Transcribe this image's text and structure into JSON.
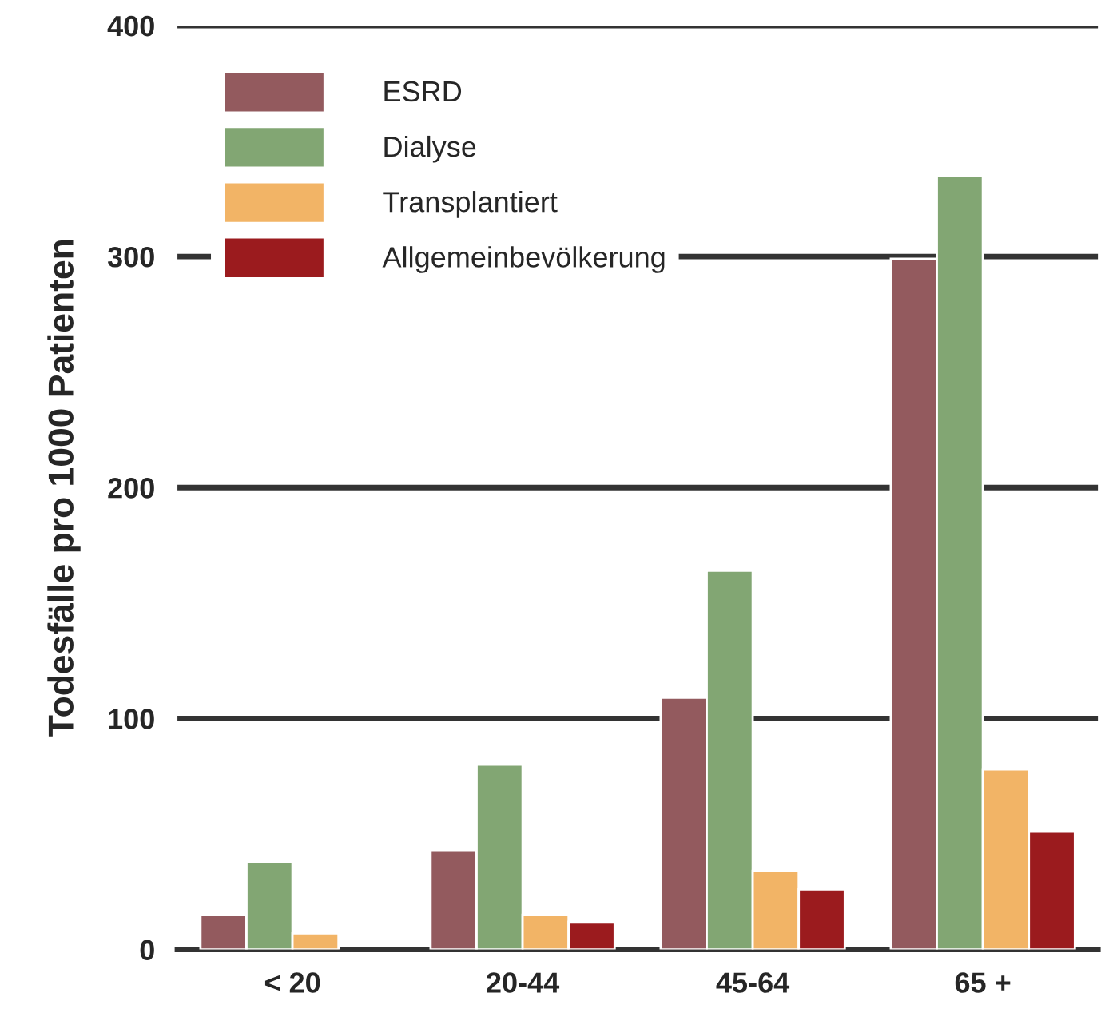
{
  "chart_data": {
    "type": "bar",
    "ylabel": "Todesfälle pro 1000 Patienten",
    "categories": [
      "< 20",
      "20-44",
      "45-64",
      "65 +"
    ],
    "series": [
      {
        "name": "ESRD",
        "color": "#935a5e",
        "values": [
          15,
          43,
          109,
          299
        ]
      },
      {
        "name": "Dialyse",
        "color": "#82a673",
        "values": [
          38,
          80,
          164,
          335
        ]
      },
      {
        "name": "Transplantiert",
        "color": "#f2b466",
        "values": [
          7,
          15,
          34,
          78
        ]
      },
      {
        "name": "Allgemeinbevölkerung",
        "color": "#9b1b1e",
        "values": [
          null,
          12,
          26,
          51
        ]
      }
    ],
    "ylim": [
      0,
      400
    ],
    "yticks": [
      0,
      100,
      200,
      300,
      400
    ],
    "grid": "y",
    "legend": "top left"
  }
}
